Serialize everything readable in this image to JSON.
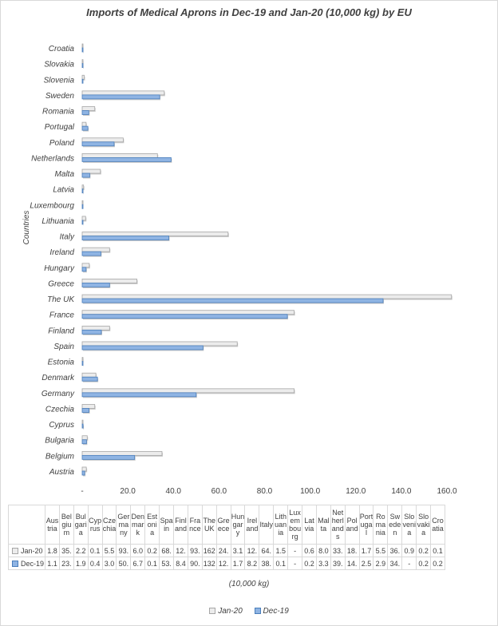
{
  "chart_data": {
    "type": "bar",
    "orientation": "horizontal",
    "title": "Imports of Medical Aprons in Dec-19 and Jan-20 (10,000 kg) by EU",
    "ylabel": "Countries",
    "xlabel": "(10,000 kg)",
    "xlim": [
      0,
      160
    ],
    "xticks": [
      "-",
      "20.0",
      "40.0",
      "60.0",
      "80.0",
      "100.0",
      "120.0",
      "140.0",
      "160.0"
    ],
    "grid": false,
    "legend_position": "bottom",
    "categories": [
      "Austria",
      "Belgium",
      "Bulgaria",
      "Cyprus",
      "Czechia",
      "Germany",
      "Denmark",
      "Estonia",
      "Spain",
      "Finland",
      "France",
      "The UK",
      "Greece",
      "Hungary",
      "Ireland",
      "Italy",
      "Lithuania",
      "Luxembourg",
      "Latvia",
      "Malta",
      "Netherlands",
      "Poland",
      "Portugal",
      "Romania",
      "Sweden",
      "Slovenia",
      "Slovakia",
      "Croatia"
    ],
    "series": [
      {
        "name": "Jan-20",
        "color": "#ececec",
        "stroke": "#a6a6a6",
        "values": [
          1.8,
          35,
          2.2,
          0.1,
          5.5,
          93,
          6.0,
          0.2,
          68,
          12,
          93,
          162,
          24,
          3.1,
          12,
          64,
          1.5,
          0,
          0.6,
          8.0,
          33,
          18,
          1.7,
          5.5,
          36,
          0.9,
          0.2,
          0.1
        ]
      },
      {
        "name": "Dec-19",
        "color": "#8fb4e3",
        "stroke": "#4a7ebb",
        "values": [
          1.1,
          23,
          1.9,
          0.4,
          3.0,
          50,
          6.7,
          0.1,
          53,
          8.4,
          90,
          132,
          12,
          1.7,
          8.2,
          38,
          0.1,
          0,
          0.2,
          3.3,
          39,
          14,
          2.5,
          2.9,
          34,
          0,
          0.2,
          0.2
        ]
      }
    ],
    "table": {
      "headers": [
        "Austria",
        "Belgium",
        "Bulgaria",
        "Cyprus",
        "Czechia",
        "Germany",
        "Denmark",
        "Estonia",
        "Spain",
        "Finland",
        "France",
        "The UK",
        "Greece",
        "Hungary",
        "Ireland",
        "Italy",
        "Lithuania",
        "Luxembourg",
        "Latvia",
        "Malta",
        "Netherlands",
        "Poland",
        "Portugal",
        "Romania",
        "Sweden",
        "Slovenia",
        "Slovakia",
        "Croatia"
      ],
      "rows": [
        {
          "label": "Jan-20",
          "cells": [
            "1.8",
            "35.",
            "2.2",
            "0.1",
            "5.5",
            "93.",
            "6.0",
            "0.2",
            "68.",
            "12.",
            "93.",
            "162",
            "24.",
            "3.1",
            "12.",
            "64.",
            "1.5",
            "-",
            "0.6",
            "8.0",
            "33.",
            "18.",
            "1.7",
            "5.5",
            "36.",
            "0.9",
            "0.2",
            "0.1"
          ]
        },
        {
          "label": "Dec-19",
          "cells": [
            "1.1",
            "23.",
            "1.9",
            "0.4",
            "3.0",
            "50.",
            "6.7",
            "0.1",
            "53.",
            "8.4",
            "90.",
            "132",
            "12.",
            "1.7",
            "8.2",
            "38.",
            "0.1",
            "-",
            "0.2",
            "3.3",
            "39.",
            "14.",
            "2.5",
            "2.9",
            "34.",
            "-",
            "0.2",
            "0.2"
          ]
        }
      ]
    }
  }
}
